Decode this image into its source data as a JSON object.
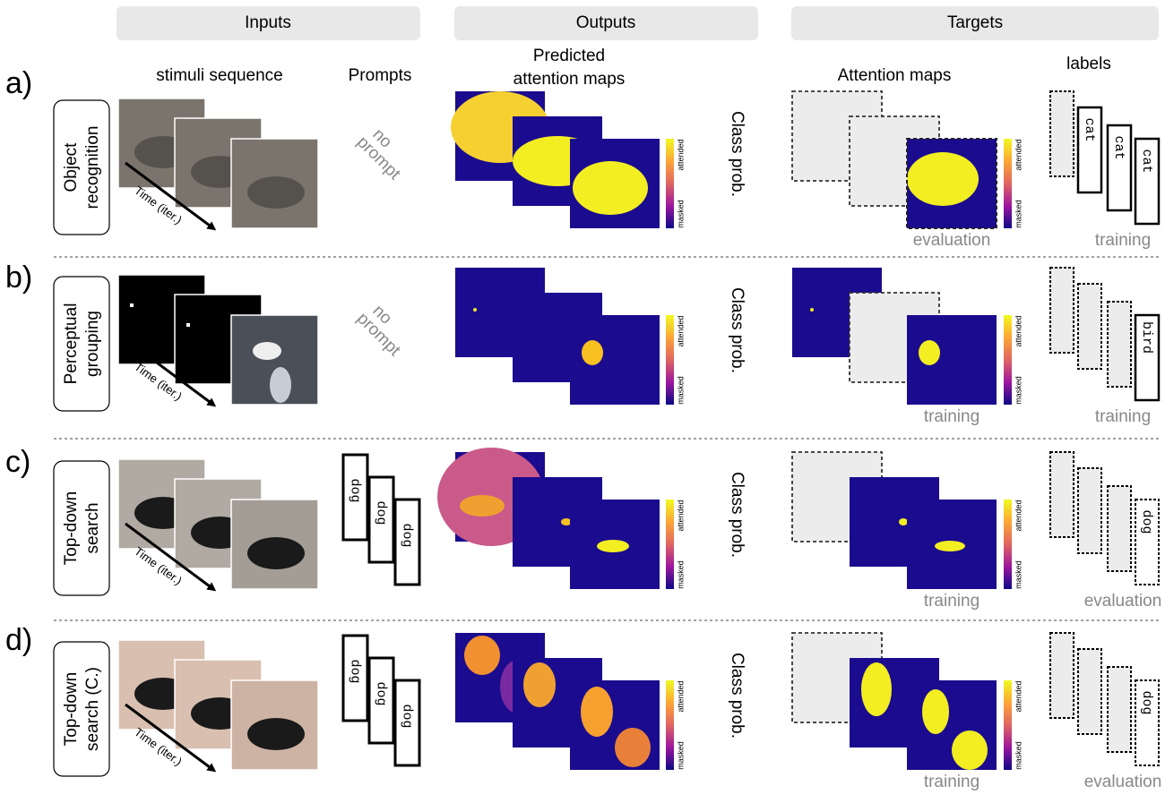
{
  "header": {
    "columns": [
      "Inputs",
      "Outputs",
      "Targets"
    ]
  },
  "subheadings": {
    "stimuli": "stimuli sequence",
    "prompts": "Prompts",
    "predicted": [
      "Predicted",
      "attention maps"
    ],
    "attention": "Attention maps",
    "labels": "labels"
  },
  "colorbar": {
    "top": "attended",
    "bottom": "masked"
  },
  "rows": [
    {
      "letter": "a)",
      "task": [
        "Object",
        "recognition"
      ],
      "time": "Time (iter.)",
      "prompt": [
        "no",
        "prompt"
      ],
      "output": "Class prob.",
      "attention_note": "evaluation",
      "labels": [
        "cat",
        "cat",
        "cat"
      ],
      "labels_note": "training"
    },
    {
      "letter": "b)",
      "task": [
        "Perceptual",
        "grouping"
      ],
      "time": "Time (iter.)",
      "prompt": [
        "no",
        "prompt"
      ],
      "output": "Class prob.",
      "attention_note": "training",
      "labels": [
        "bird"
      ],
      "labels_note": "training"
    },
    {
      "letter": "c)",
      "task": [
        "Top-down",
        "search"
      ],
      "time": "Time (iter.)",
      "prompts": [
        "dog",
        "dog",
        "dog"
      ],
      "output": "Class prob.",
      "attention_note": "training",
      "labels": [
        "dog"
      ],
      "labels_note": "evaluation"
    },
    {
      "letter": "d)",
      "task": [
        "Top-down",
        "search (C.)"
      ],
      "time": "Time (iter.)",
      "prompts": [
        "dog",
        "dog",
        "dog"
      ],
      "output": "Class prob.",
      "attention_note": "training",
      "labels": [
        "dog"
      ],
      "labels_note": "evaluation"
    }
  ]
}
